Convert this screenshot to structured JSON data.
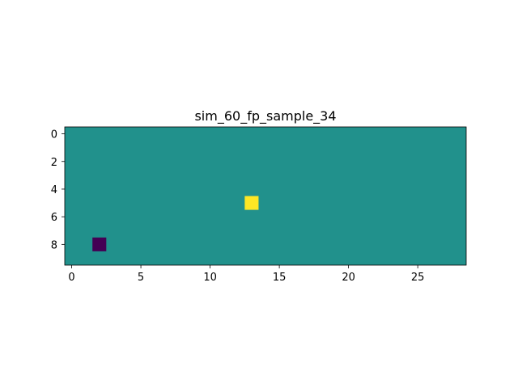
{
  "chart_data": {
    "type": "heatmap",
    "title": "sim_60_fp_sample_34",
    "xlabel": "",
    "ylabel": "",
    "n_rows": 10,
    "n_cols": 29,
    "xlim": [
      -0.5,
      28.5
    ],
    "ylim": [
      9.5,
      -0.5
    ],
    "background_value": 0,
    "cells": [
      {
        "row": 5,
        "col": 13,
        "value": 1
      },
      {
        "row": 8,
        "col": 2,
        "value": -1
      }
    ],
    "x_ticks": [
      0,
      5,
      10,
      15,
      20,
      25
    ],
    "y_ticks": [
      0,
      2,
      4,
      6,
      8
    ],
    "x_tick_labels": [
      "0",
      "5",
      "10",
      "15",
      "20",
      "25"
    ],
    "y_tick_labels": [
      "0",
      "2",
      "4",
      "6",
      "8"
    ],
    "colormap": {
      "min": "#440154",
      "mid": "#21918c",
      "max": "#fde725"
    },
    "value_range": [
      -1,
      1
    ],
    "grid": false,
    "legend": "none"
  }
}
